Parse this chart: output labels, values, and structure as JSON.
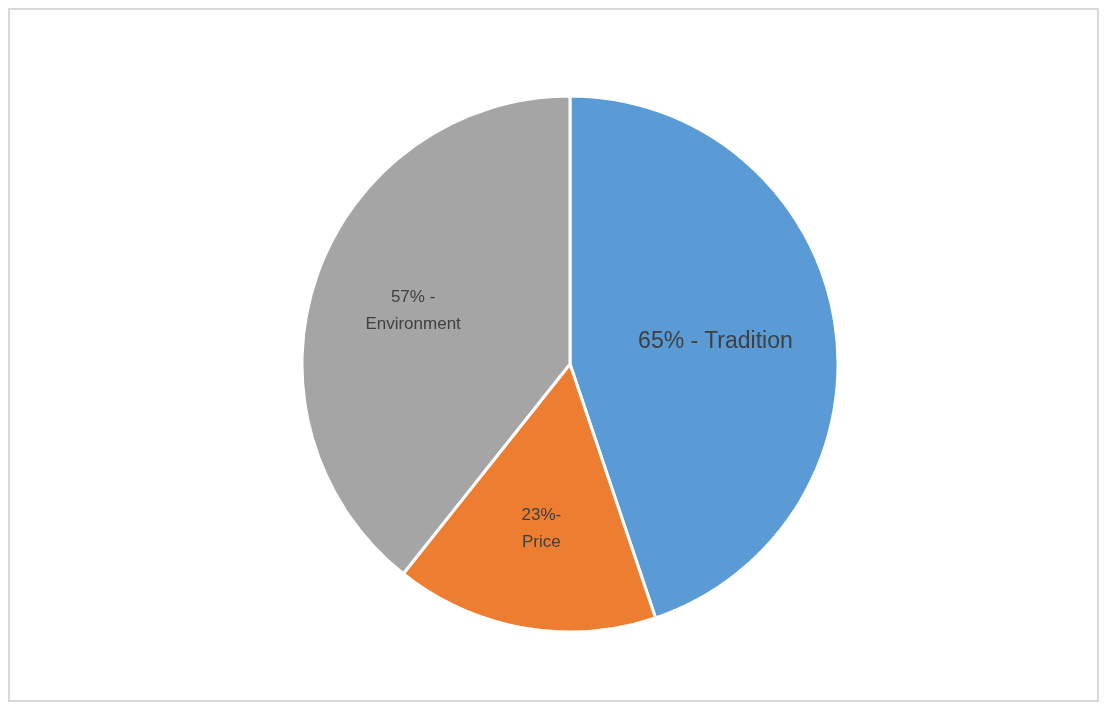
{
  "chart_data": {
    "type": "pie",
    "categories": [
      "Tradition",
      "Price",
      "Environment"
    ],
    "values": [
      65,
      23,
      57
    ],
    "colors": [
      "#5b9bd5",
      "#ed7d31",
      "#a5a5a5"
    ],
    "value_labels": [
      "65% -",
      "23%-",
      "57% -"
    ]
  }
}
